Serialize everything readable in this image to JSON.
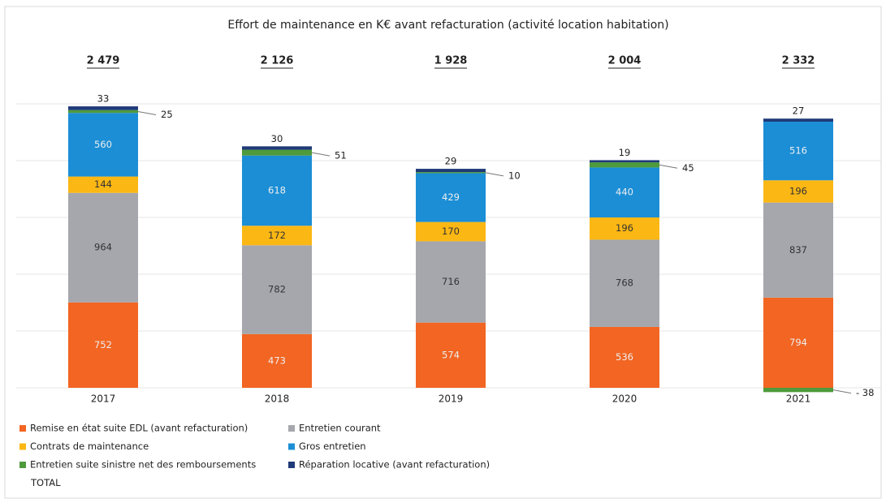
{
  "chart_data": {
    "type": "stacked_bar",
    "title": "Effort de maintenance en K€ avant refacturation (activité location habitation)",
    "categories": [
      "2017",
      "2018",
      "2019",
      "2020",
      "2021"
    ],
    "series": [
      {
        "name": "Remise en état suite EDL (avant refacturation)",
        "color": "#f26522",
        "values": [
          752,
          473,
          574,
          536,
          794
        ]
      },
      {
        "name": "Entretien courant",
        "color": "#a5a7ad",
        "values": [
          964,
          782,
          716,
          768,
          837
        ]
      },
      {
        "name": "Contrats de maintenance",
        "color": "#fbb714",
        "values": [
          144,
          172,
          170,
          196,
          196
        ]
      },
      {
        "name": "Gros entretien",
        "color": "#1b8ed6",
        "values": [
          560,
          618,
          429,
          440,
          516
        ]
      },
      {
        "name": "Entretien suite sinistre net des remboursements",
        "color": "#4e9a3c",
        "values": [
          25,
          51,
          10,
          45,
          -38
        ],
        "value_labels": [
          "25",
          "51",
          "10",
          "45",
          "- 38"
        ]
      },
      {
        "name": "Réparation locative (avant refacturation)",
        "color": "#1f3a78",
        "values": [
          33,
          30,
          29,
          19,
          27
        ]
      },
      {
        "name": "TOTAL",
        "values": [
          2479,
          2126,
          1928,
          2004,
          2332
        ],
        "value_labels": [
          "2 479",
          "2 126",
          "1 928",
          "2 004",
          "2 332"
        ]
      }
    ],
    "ylim": [
      -200,
      2700
    ],
    "yticks": [
      0,
      500,
      1000,
      1500,
      2000,
      2500
    ],
    "grid": true
  }
}
